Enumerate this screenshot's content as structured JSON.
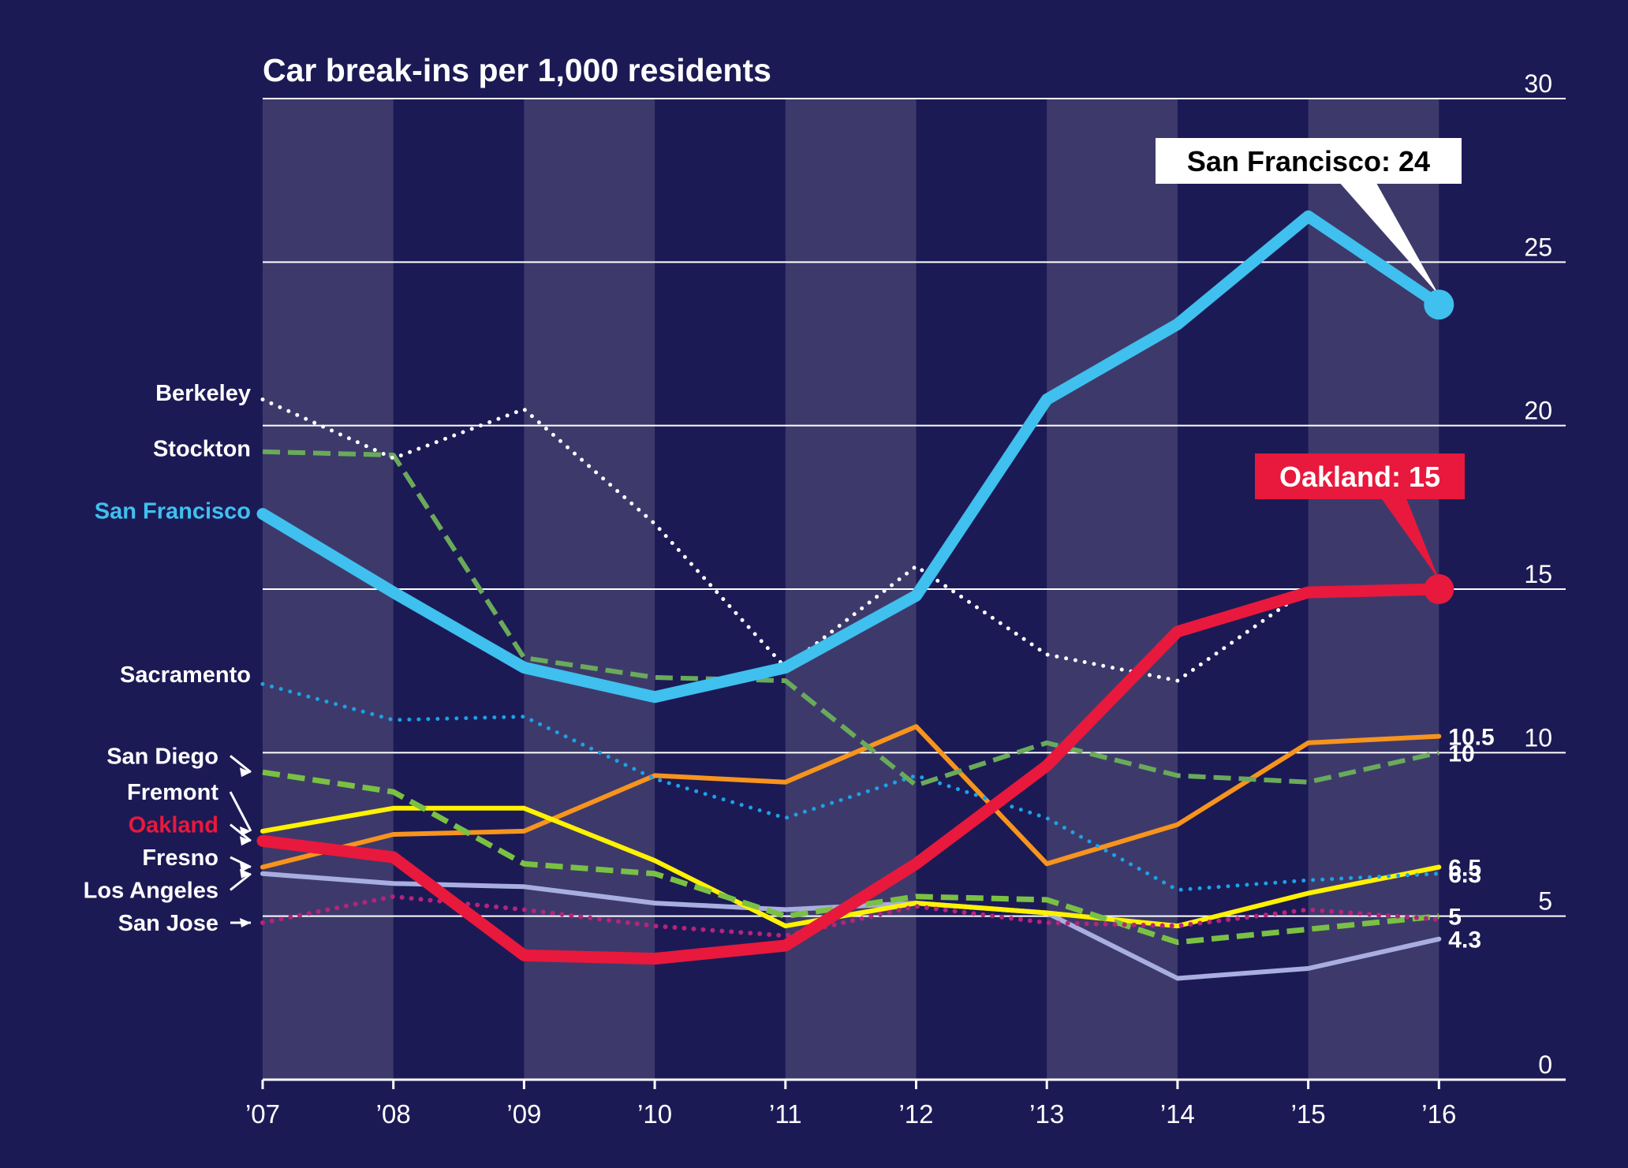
{
  "chart_data": {
    "type": "line",
    "title": "Car break-ins per 1,000 residents",
    "categories": [
      "’07",
      "’08",
      "’09",
      "’10",
      "’11",
      "’12",
      "’13",
      "’14",
      "’15",
      "’16"
    ],
    "ylim": [
      0,
      30
    ],
    "yticks": [
      "0",
      "5",
      "10",
      "15",
      "20",
      "25",
      "30"
    ],
    "grid": "horizontal",
    "colors": {
      "background": "#1c1a55",
      "band": "#3d3a6b",
      "grid": "#ffffff"
    },
    "series": [
      {
        "name": "Los Angeles",
        "color": "#a9aee0",
        "dash": "solid",
        "width": 6,
        "values": [
          6.3,
          6.0,
          5.9,
          5.4,
          5.2,
          5.4,
          5.1,
          3.1,
          3.4,
          4.3
        ]
      },
      {
        "name": "Fresno",
        "color": "#f7941d",
        "dash": "solid",
        "width": 6,
        "values": [
          6.5,
          7.5,
          7.6,
          9.3,
          9.1,
          10.8,
          6.6,
          7.8,
          10.3,
          10.5
        ]
      },
      {
        "name": "Fremont",
        "color": "#fff200",
        "dash": "solid",
        "width": 6,
        "values": [
          7.6,
          8.3,
          8.3,
          6.7,
          4.7,
          5.4,
          5.1,
          4.7,
          5.7,
          6.5
        ]
      },
      {
        "name": "San Diego",
        "color": "#7ac143",
        "dash": "dashed",
        "width": 7,
        "values": [
          9.4,
          8.8,
          6.6,
          6.3,
          5.0,
          5.6,
          5.5,
          4.2,
          4.6,
          5.0
        ]
      },
      {
        "name": "San Jose",
        "color": "#b5247a",
        "dash": "dotted",
        "width": 6,
        "values": [
          4.8,
          5.6,
          5.2,
          4.7,
          4.4,
          5.3,
          4.8,
          4.7,
          5.2,
          4.9
        ]
      },
      {
        "name": "Sacramento",
        "color": "#1aa3e8",
        "dash": "dotted",
        "width": 5,
        "values": [
          12.1,
          11.0,
          11.1,
          9.2,
          8.0,
          9.3,
          8.0,
          5.8,
          6.1,
          6.3
        ]
      },
      {
        "name": "Stockton",
        "color": "#6aaa5b",
        "dash": "dashed",
        "width": 6,
        "values": [
          19.2,
          19.1,
          12.9,
          12.3,
          12.2,
          9.0,
          10.3,
          9.3,
          9.1,
          10.0
        ]
      },
      {
        "name": "Berkeley",
        "color": "#ffffff",
        "dash": "dotted",
        "width": 5,
        "values": [
          20.8,
          19.0,
          20.5,
          17.0,
          12.6,
          15.7,
          13.0,
          12.2,
          15.0,
          15.0
        ]
      },
      {
        "name": "Oakland",
        "color": "#e8193c",
        "dash": "solid",
        "width": 15,
        "values": [
          7.3,
          6.8,
          3.8,
          3.7,
          4.1,
          6.6,
          9.6,
          13.7,
          14.9,
          15.0
        ]
      },
      {
        "name": "San Francisco",
        "color": "#3fc0ef",
        "dash": "solid",
        "width": 15,
        "values": [
          17.3,
          14.9,
          12.6,
          11.7,
          12.6,
          14.8,
          20.8,
          23.1,
          26.4,
          23.7
        ]
      }
    ],
    "left_labels": [
      {
        "text": "Berkeley",
        "color": "#ffffff",
        "value": 21.0,
        "pointer": false
      },
      {
        "text": "Stockton",
        "color": "#ffffff",
        "value": 19.3,
        "pointer": false
      },
      {
        "text": "San Francisco",
        "color": "#3fc0ef",
        "value": 17.4,
        "pointer": false
      },
      {
        "text": "Sacramento",
        "color": "#ffffff",
        "value": 12.4,
        "pointer": false
      },
      {
        "text": "San Diego",
        "color": "#ffffff",
        "value": 9.9,
        "pointer": true,
        "target": 9.4
      },
      {
        "text": "Fremont",
        "color": "#ffffff",
        "value": 8.8,
        "pointer": true,
        "target": 7.6
      },
      {
        "text": "Oakland",
        "color": "#e8193c",
        "value": 7.8,
        "pointer": true,
        "target": 7.3
      },
      {
        "text": "Fresno",
        "color": "#ffffff",
        "value": 6.8,
        "pointer": true,
        "target": 6.5
      },
      {
        "text": "Los Angeles",
        "color": "#ffffff",
        "value": 5.8,
        "pointer": true,
        "target": 6.3
      },
      {
        "text": "San Jose",
        "color": "#ffffff",
        "value": 4.8,
        "pointer": true,
        "target": 4.8
      }
    ],
    "end_labels": [
      {
        "text": "10.5",
        "value": 10.5,
        "offset": 0
      },
      {
        "text": "10",
        "value": 10.0,
        "offset": 0
      },
      {
        "text": "6.5",
        "value": 6.5,
        "offset": 0
      },
      {
        "text": "6.3",
        "value": 6.3,
        "offset": 0
      },
      {
        "text": "5",
        "value": 5.0,
        "offset": 0
      },
      {
        "text": "4.3",
        "value": 4.3,
        "offset": 0
      }
    ],
    "callouts": [
      {
        "text": "San Francisco: 24",
        "box_color": "#ffffff",
        "text_color": "#000000",
        "series": "San Francisco",
        "value": 23.7
      },
      {
        "text": "Oakland: 15",
        "box_color": "#e8193c",
        "text_color": "#ffffff",
        "series": "Oakland",
        "value": 15.0
      }
    ]
  }
}
